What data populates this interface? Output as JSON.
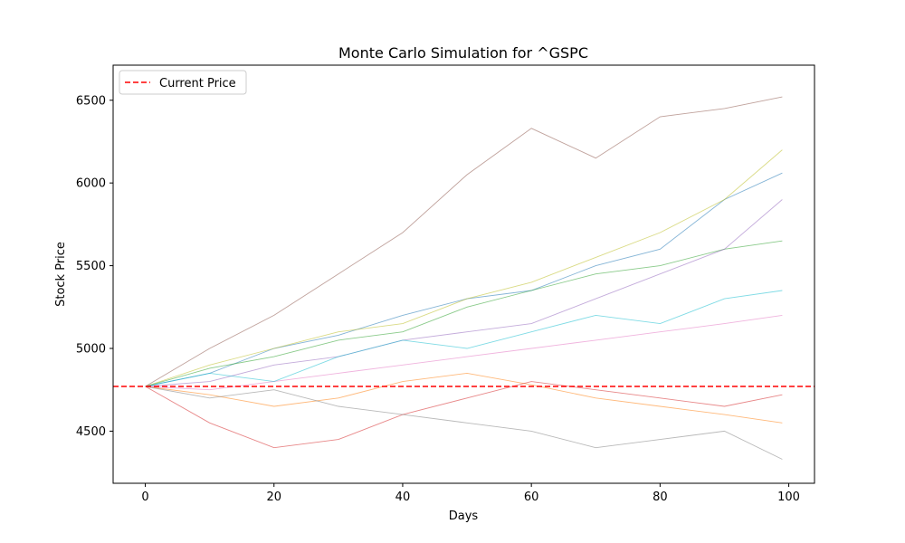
{
  "chart_data": {
    "type": "line",
    "title": "Monte Carlo Simulation for ^GSPC",
    "xlabel": "Days",
    "ylabel": "Stock Price",
    "xlim": [
      -5,
      104
    ],
    "ylim": [
      4185,
      6712
    ],
    "xticks": [
      0,
      20,
      40,
      60,
      80,
      100
    ],
    "yticks": [
      4500,
      5000,
      5500,
      6000,
      6500
    ],
    "grid": false,
    "legend": {
      "position": "top-left",
      "entries": [
        "Current Price"
      ]
    },
    "reference_line": {
      "name": "Current Price",
      "value": 4770,
      "color": "#ff0000",
      "style": "dashed"
    },
    "series_colors": [
      "#1f77b4",
      "#ff7f0e",
      "#2ca02c",
      "#d62728",
      "#9467bd",
      "#8c564b",
      "#e377c2",
      "#7f7f7f",
      "#bcbd22",
      "#17becf"
    ],
    "series": [
      {
        "x": [
          0,
          10,
          20,
          30,
          40,
          50,
          60,
          70,
          80,
          90,
          99
        ],
        "values": [
          4770,
          4850,
          5000,
          5080,
          5200,
          5300,
          5350,
          5500,
          5600,
          5900,
          6060
        ]
      },
      {
        "x": [
          0,
          10,
          20,
          30,
          40,
          50,
          60,
          70,
          80,
          90,
          99
        ],
        "values": [
          4770,
          4720,
          4650,
          4700,
          4800,
          4850,
          4780,
          4700,
          4650,
          4600,
          4550
        ]
      },
      {
        "x": [
          0,
          10,
          20,
          30,
          40,
          50,
          60,
          70,
          80,
          90,
          99
        ],
        "values": [
          4770,
          4880,
          4950,
          5050,
          5100,
          5250,
          5350,
          5450,
          5500,
          5600,
          5650
        ]
      },
      {
        "x": [
          0,
          10,
          20,
          30,
          40,
          50,
          60,
          70,
          80,
          90,
          99
        ],
        "values": [
          4770,
          4550,
          4400,
          4450,
          4600,
          4700,
          4800,
          4750,
          4700,
          4650,
          4720
        ]
      },
      {
        "x": [
          0,
          10,
          20,
          30,
          40,
          50,
          60,
          70,
          80,
          90,
          99
        ],
        "values": [
          4770,
          4800,
          4900,
          4950,
          5050,
          5100,
          5150,
          5300,
          5450,
          5600,
          5900
        ]
      },
      {
        "x": [
          0,
          10,
          20,
          30,
          40,
          50,
          60,
          70,
          80,
          90,
          99
        ],
        "values": [
          4770,
          5000,
          5200,
          5450,
          5700,
          6050,
          6330,
          6150,
          6400,
          6450,
          6520
        ]
      },
      {
        "x": [
          0,
          10,
          20,
          30,
          40,
          50,
          60,
          70,
          80,
          90,
          99
        ],
        "values": [
          4770,
          4750,
          4800,
          4850,
          4900,
          4950,
          5000,
          5050,
          5100,
          5150,
          5200
        ]
      },
      {
        "x": [
          0,
          10,
          20,
          30,
          40,
          50,
          60,
          70,
          80,
          90,
          99
        ],
        "values": [
          4770,
          4700,
          4750,
          4650,
          4600,
          4550,
          4500,
          4400,
          4450,
          4500,
          4330
        ]
      },
      {
        "x": [
          0,
          10,
          20,
          30,
          40,
          50,
          60,
          70,
          80,
          90,
          99
        ],
        "values": [
          4770,
          4900,
          5000,
          5100,
          5150,
          5300,
          5400,
          5550,
          5700,
          5900,
          6200
        ]
      },
      {
        "x": [
          0,
          10,
          20,
          30,
          40,
          50,
          60,
          70,
          80,
          90,
          99
        ],
        "values": [
          4770,
          4850,
          4800,
          4950,
          5050,
          5000,
          5100,
          5200,
          5150,
          5300,
          5350
        ]
      }
    ]
  }
}
